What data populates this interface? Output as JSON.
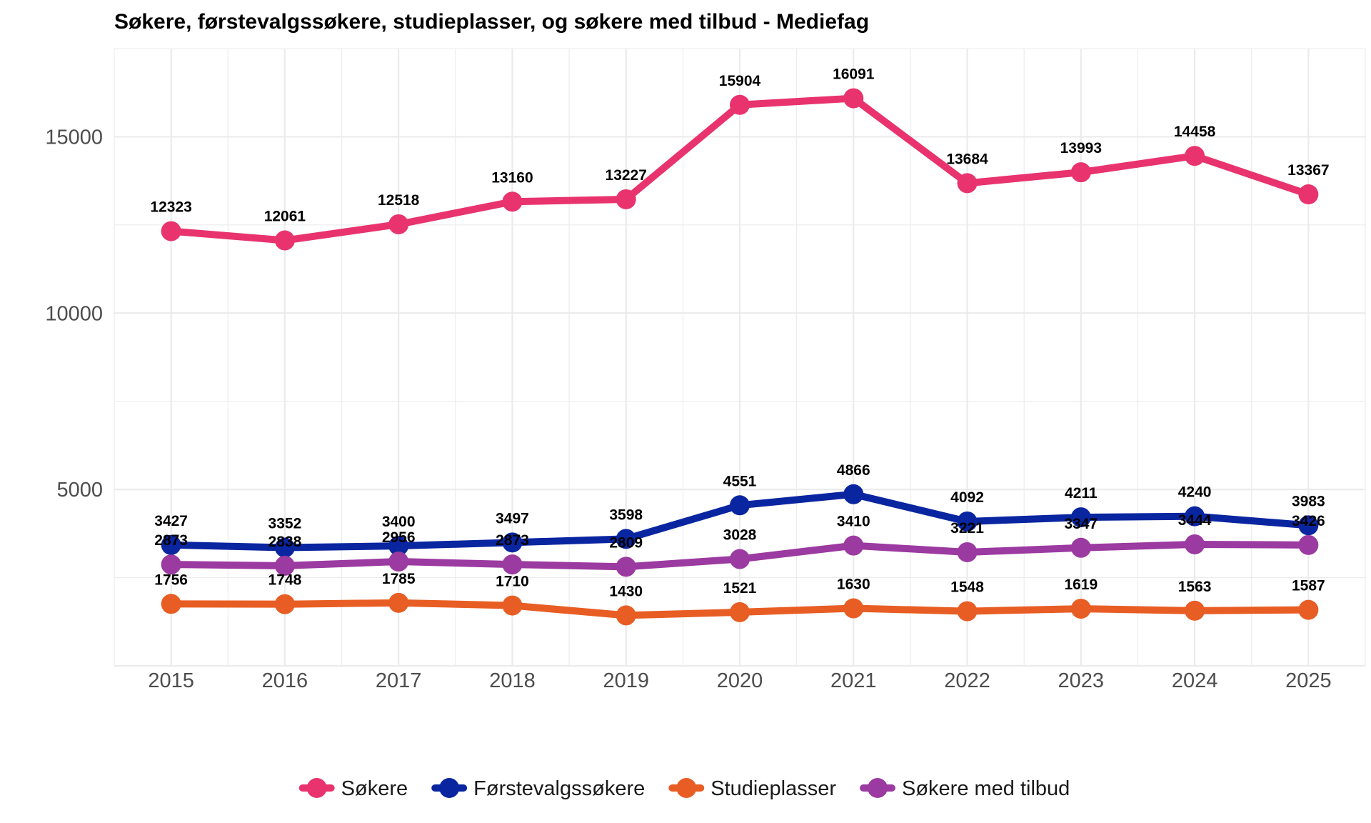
{
  "chart_data": {
    "type": "line",
    "title": "Søkere, førstevalgssøkere, studieplasser, og søkere med tilbud - Mediefag",
    "xlabel": "",
    "ylabel": "",
    "x": [
      "2015",
      "2016",
      "2017",
      "2018",
      "2019",
      "2020",
      "2021",
      "2022",
      "2023",
      "2024",
      "2025"
    ],
    "ylim": [
      0,
      17500
    ],
    "xlim": [
      2014.5,
      2025.5
    ],
    "y_ticks": [
      5000,
      10000,
      15000
    ],
    "grid": true,
    "legend_position": "bottom",
    "series": [
      {
        "name": "Søkere",
        "color": "#E8336F",
        "values": [
          12323,
          12061,
          12518,
          13160,
          13227,
          15904,
          16091,
          13684,
          13993,
          14458,
          13367
        ]
      },
      {
        "name": "Førstevalgssøkere",
        "color": "#0A25A0",
        "values": [
          3427,
          3352,
          3400,
          3497,
          3598,
          4551,
          4866,
          4092,
          4211,
          4240,
          3983
        ]
      },
      {
        "name": "Studieplasser",
        "color": "#E85D24",
        "values": [
          1756,
          1748,
          1785,
          1710,
          1430,
          1521,
          1630,
          1548,
          1619,
          1563,
          1587
        ]
      },
      {
        "name": "Søkere med tilbud",
        "color": "#9B3AA0",
        "values": [
          2873,
          2838,
          2956,
          2873,
          2809,
          3028,
          3410,
          3221,
          3347,
          3444,
          3426
        ]
      }
    ]
  }
}
